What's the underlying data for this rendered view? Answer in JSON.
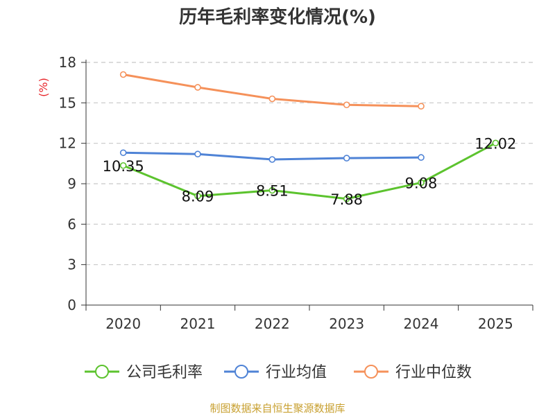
{
  "chart_data": {
    "type": "line",
    "title": "历年毛利率变化情况(%)",
    "ylabel": "(%)",
    "x": [
      "2020",
      "2021",
      "2022",
      "2023",
      "2024",
      "2025"
    ],
    "ylim": [
      0,
      18
    ],
    "yticks": [
      0,
      3,
      6,
      9,
      12,
      15,
      18
    ],
    "grid": true,
    "legend_position": "bottom",
    "series": [
      {
        "name": "公司毛利率",
        "color": "#5cc32e",
        "values": [
          10.35,
          8.09,
          8.51,
          7.88,
          9.08,
          12.02
        ],
        "labels": [
          "10.35",
          "8.09",
          "8.51",
          "7.88",
          "9.08",
          "12.02"
        ]
      },
      {
        "name": "行业均值",
        "color": "#4f83d6",
        "values": [
          11.3,
          11.2,
          10.8,
          10.9,
          10.95,
          null
        ]
      },
      {
        "name": "行业中位数",
        "color": "#f5915a",
        "values": [
          17.1,
          16.15,
          15.3,
          14.85,
          14.75,
          null
        ]
      }
    ]
  },
  "source": "制图数据来自恒生聚源数据库"
}
